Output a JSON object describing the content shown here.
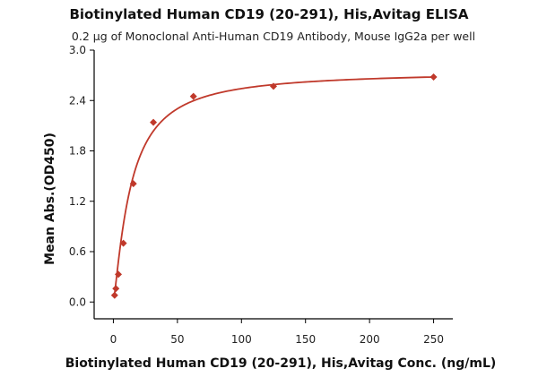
{
  "chart_data": {
    "type": "scatter",
    "title": "Biotinylated Human CD19 (20-291), His,Avitag ELISA",
    "subtitle": "0.2 μg of Monoclonal Anti-Human CD19 Antibody, Mouse IgG2a per well",
    "xlabel": "Biotinylated Human CD19 (20-291), His,Avitag Conc. (ng/mL)",
    "ylabel": "Mean Abs.(OD450)",
    "xlim": [
      -15,
      265
    ],
    "ylim": [
      -0.2,
      3.0
    ],
    "xticks": [
      0,
      50,
      100,
      150,
      200,
      250
    ],
    "yticks": [
      0.0,
      0.6,
      1.2,
      1.8,
      2.4,
      3.0
    ],
    "ytick_labels": [
      "0.0",
      "0.6",
      "1.2",
      "1.8",
      "2.4",
      "3.0"
    ],
    "grid": false,
    "color": "#c0392b",
    "series": [
      {
        "x": [
          0.977,
          1.95,
          3.91,
          7.81,
          15.6,
          31.25,
          62.5,
          125,
          250
        ],
        "y": [
          0.08,
          0.16,
          0.33,
          0.7,
          1.41,
          2.14,
          2.45,
          2.57,
          2.68
        ]
      }
    ],
    "fit": "4PL"
  }
}
